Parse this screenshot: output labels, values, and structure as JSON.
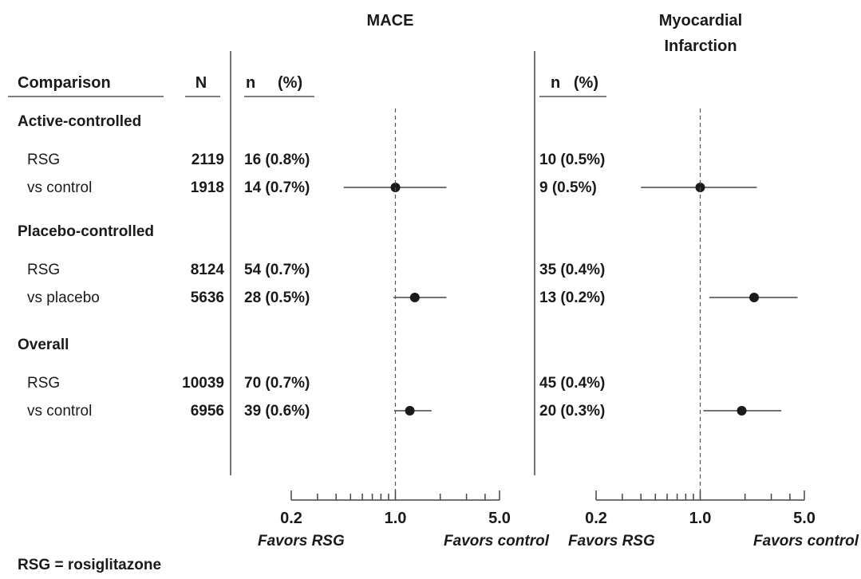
{
  "headers": {
    "comparison": "Comparison",
    "n_total": "N",
    "mace_title": "MACE",
    "mi_title_line1": "Myocardial",
    "mi_title_line2": "Infarction",
    "mace_cols": "n     (%)",
    "mi_cols": "n   (%)"
  },
  "footnote": "RSG = rosiglitazone",
  "chart_data": {
    "type": "forest",
    "x_scale": "log",
    "xlim": [
      0.2,
      5.0
    ],
    "reference_line": 1.0,
    "tick_labels": [
      "0.2",
      "1.0",
      "5.0"
    ],
    "favors_left": "Favors RSG",
    "favors_right": "Favors control",
    "groups": [
      {
        "label": "Active-controlled",
        "rows": [
          {
            "label": "RSG",
            "N": "2119",
            "mace": "16 (0.8%)",
            "mi": "10 (0.5%)"
          },
          {
            "label": "vs control",
            "N": "1918",
            "mace": "14 (0.7%)",
            "mi": "9 (0.5%)"
          }
        ],
        "mace_estimate": {
          "or": 1.0,
          "lo": 0.45,
          "hi": 2.2
        },
        "mi_estimate": {
          "or": 1.0,
          "lo": 0.4,
          "hi": 2.4
        }
      },
      {
        "label": "Placebo-controlled",
        "rows": [
          {
            "label": "RSG",
            "N": "8124",
            "mace": "54 (0.7%)",
            "mi": "35 (0.4%)"
          },
          {
            "label": "vs placebo",
            "N": "5636",
            "mace": "28 (0.5%)",
            "mi": "13 (0.2%)"
          }
        ],
        "mace_estimate": {
          "or": 1.35,
          "lo": 0.97,
          "hi": 2.2
        },
        "mi_estimate": {
          "or": 2.3,
          "lo": 1.15,
          "hi": 4.5
        }
      },
      {
        "label": "Overall",
        "rows": [
          {
            "label": "RSG",
            "N": "10039",
            "mace": "70 (0.7%)",
            "mi": "45 (0.4%)"
          },
          {
            "label": "vs control",
            "N": "6956",
            "mace": "39 (0.6%)",
            "mi": "20 (0.3%)"
          }
        ],
        "mace_estimate": {
          "or": 1.25,
          "lo": 0.98,
          "hi": 1.75
        },
        "mi_estimate": {
          "or": 1.9,
          "lo": 1.05,
          "hi": 3.5
        }
      }
    ]
  }
}
